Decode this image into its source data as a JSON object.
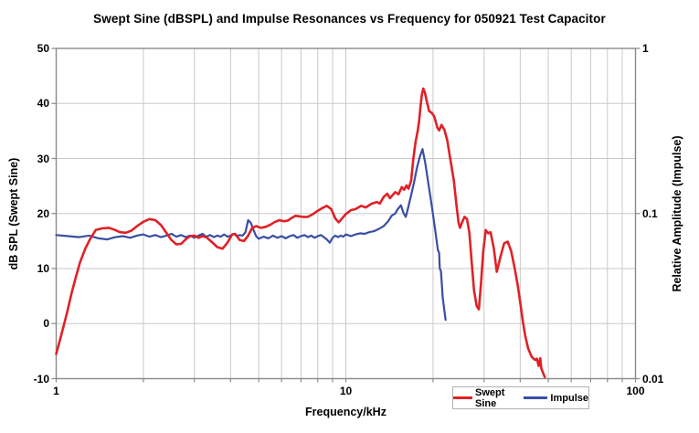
{
  "title": "Swept Sine (dBSPL) and Impulse Resonances vs Frequency for 050921 Test Capacitor",
  "axes": {
    "x": {
      "label": "Frequency/kHz",
      "tick_labels": [
        "1",
        "10",
        "100"
      ]
    },
    "y_left": {
      "label": "dB SPL (Swept Sine)",
      "tick_labels": [
        "50",
        "40",
        "30",
        "20",
        "10",
        "0",
        "-10"
      ]
    },
    "y_right": {
      "label": "Relative Amplitude (Impulse)",
      "tick_labels": [
        "1",
        "0.1",
        "0.01"
      ]
    }
  },
  "legend": {
    "items": [
      {
        "label": "Swept Sine",
        "color": "#e02127"
      },
      {
        "label": "Impulse",
        "color": "#3a4ea3"
      }
    ]
  },
  "colors": {
    "background": "#ffffff",
    "grid": "#c8c8c8",
    "frame": "#8a8a8a",
    "text": "#000000",
    "legend_border": "#b3b3b3",
    "swept_sine": "#e02127",
    "impulse": "#3a4ea3"
  },
  "chart_data": {
    "type": "line",
    "title": "Swept Sine (dBSPL) and Impulse Resonances vs Frequency for 050921 Test Capacitor",
    "xlabel": "Frequency/kHz",
    "ylabel_left": "dB SPL (Swept Sine)",
    "ylabel_right": "Relative Amplitude (Impulse)",
    "x_scale": "log",
    "xlim": [
      1,
      100
    ],
    "ylim_left": [
      -10,
      50
    ],
    "ylim_right": [
      0.01,
      1
    ],
    "y_right_scale": "log",
    "grid": true,
    "legend_position": "bottom-right",
    "x_ticks": [
      1,
      2,
      3,
      4,
      5,
      6,
      7,
      8,
      9,
      10,
      20,
      30,
      40,
      50,
      60,
      70,
      80,
      90,
      100
    ],
    "x_gridlines": [
      2,
      3,
      4,
      5,
      6,
      7,
      8,
      9,
      10,
      20,
      30,
      40,
      50,
      60,
      70,
      80,
      90
    ],
    "y_left_ticks": [
      50,
      40,
      30,
      20,
      10,
      0,
      -10
    ],
    "y_gridlines": [
      40,
      30,
      20,
      10,
      0
    ],
    "y_right_ticks": [
      1,
      0.1,
      0.01
    ],
    "series": [
      {
        "name": "Swept Sine",
        "color": "#e02127",
        "y_axis": "left",
        "units": "dB SPL",
        "width": 2.6,
        "points": [
          [
            1.0,
            -5.5
          ],
          [
            1.03,
            -3.0
          ],
          [
            1.06,
            -0.5
          ],
          [
            1.09,
            2.0
          ],
          [
            1.13,
            5.5
          ],
          [
            1.17,
            8.5
          ],
          [
            1.21,
            11.2
          ],
          [
            1.26,
            13.6
          ],
          [
            1.31,
            15.4
          ],
          [
            1.37,
            17.0
          ],
          [
            1.44,
            17.3
          ],
          [
            1.52,
            17.4
          ],
          [
            1.58,
            17.1
          ],
          [
            1.66,
            16.6
          ],
          [
            1.74,
            16.5
          ],
          [
            1.82,
            16.9
          ],
          [
            1.9,
            17.7
          ],
          [
            2.0,
            18.5
          ],
          [
            2.1,
            19.0
          ],
          [
            2.2,
            18.8
          ],
          [
            2.3,
            17.9
          ],
          [
            2.4,
            16.5
          ],
          [
            2.5,
            15.2
          ],
          [
            2.6,
            14.4
          ],
          [
            2.7,
            14.5
          ],
          [
            2.8,
            15.3
          ],
          [
            2.9,
            15.9
          ],
          [
            3.0,
            16.0
          ],
          [
            3.1,
            15.6
          ],
          [
            3.2,
            15.9
          ],
          [
            3.3,
            15.7
          ],
          [
            3.45,
            14.8
          ],
          [
            3.6,
            13.9
          ],
          [
            3.75,
            13.6
          ],
          [
            3.9,
            14.7
          ],
          [
            4.05,
            16.2
          ],
          [
            4.15,
            16.3
          ],
          [
            4.3,
            15.2
          ],
          [
            4.45,
            15.0
          ],
          [
            4.6,
            16.0
          ],
          [
            4.75,
            17.4
          ],
          [
            4.9,
            17.7
          ],
          [
            5.1,
            17.4
          ],
          [
            5.3,
            17.6
          ],
          [
            5.5,
            18.0
          ],
          [
            5.7,
            18.5
          ],
          [
            5.9,
            18.8
          ],
          [
            6.1,
            18.6
          ],
          [
            6.3,
            18.7
          ],
          [
            6.5,
            19.2
          ],
          [
            6.7,
            19.6
          ],
          [
            6.9,
            19.5
          ],
          [
            7.1,
            19.4
          ],
          [
            7.4,
            19.4
          ],
          [
            7.7,
            19.9
          ],
          [
            8.0,
            20.5
          ],
          [
            8.3,
            21.0
          ],
          [
            8.6,
            21.4
          ],
          [
            8.9,
            20.8
          ],
          [
            9.2,
            19.1
          ],
          [
            9.45,
            18.4
          ],
          [
            9.7,
            19.1
          ],
          [
            10.0,
            19.9
          ],
          [
            10.4,
            20.6
          ],
          [
            10.8,
            20.8
          ],
          [
            11.3,
            21.4
          ],
          [
            11.7,
            21.1
          ],
          [
            12.3,
            21.8
          ],
          [
            12.8,
            22.1
          ],
          [
            13.1,
            21.8
          ],
          [
            13.5,
            23.0
          ],
          [
            13.9,
            23.6
          ],
          [
            14.2,
            22.8
          ],
          [
            14.8,
            23.9
          ],
          [
            15.2,
            23.5
          ],
          [
            15.6,
            24.8
          ],
          [
            15.9,
            24.3
          ],
          [
            16.2,
            25.1
          ],
          [
            16.45,
            24.5
          ],
          [
            16.8,
            25.9
          ],
          [
            17.1,
            30.0
          ],
          [
            17.4,
            33.0
          ],
          [
            17.7,
            35.0
          ],
          [
            17.9,
            36.8
          ],
          [
            18.1,
            39.4
          ],
          [
            18.3,
            41.6
          ],
          [
            18.5,
            42.7
          ],
          [
            18.75,
            42.0
          ],
          [
            19.0,
            40.5
          ],
          [
            19.4,
            38.6
          ],
          [
            19.8,
            38.3
          ],
          [
            20.2,
            37.6
          ],
          [
            20.7,
            35.6
          ],
          [
            21.0,
            35.1
          ],
          [
            21.4,
            36.1
          ],
          [
            21.9,
            35.2
          ],
          [
            22.4,
            33.3
          ],
          [
            23.0,
            29.5
          ],
          [
            23.6,
            26.0
          ],
          [
            24.1,
            21.5
          ],
          [
            24.5,
            18.3
          ],
          [
            24.8,
            17.4
          ],
          [
            25.2,
            18.4
          ],
          [
            25.7,
            19.4
          ],
          [
            26.2,
            19.0
          ],
          [
            26.7,
            16.5
          ],
          [
            27.2,
            11.0
          ],
          [
            27.7,
            6.0
          ],
          [
            28.3,
            3.2
          ],
          [
            28.8,
            2.6
          ],
          [
            29.3,
            7.5
          ],
          [
            29.8,
            13.0
          ],
          [
            30.4,
            17.0
          ],
          [
            31.0,
            16.4
          ],
          [
            31.6,
            16.6
          ],
          [
            32.4,
            13.8
          ],
          [
            33.2,
            9.4
          ],
          [
            34.2,
            12.2
          ],
          [
            35.2,
            14.6
          ],
          [
            36.2,
            14.9
          ],
          [
            37.2,
            13.2
          ],
          [
            38.2,
            10.3
          ],
          [
            39.2,
            7.0
          ],
          [
            40.0,
            3.8
          ],
          [
            40.8,
            0.5
          ],
          [
            41.6,
            -2.2
          ],
          [
            42.6,
            -4.5
          ],
          [
            43.8,
            -6.0
          ],
          [
            45.0,
            -6.6
          ],
          [
            45.7,
            -6.4
          ],
          [
            46.3,
            -7.7
          ],
          [
            46.9,
            -6.3
          ],
          [
            47.3,
            -8.1
          ],
          [
            47.9,
            -8.9
          ],
          [
            48.6,
            -9.7
          ]
        ]
      },
      {
        "name": "Impulse",
        "color": "#3a4ea3",
        "y_axis": "right",
        "units": "relative amplitude",
        "width": 2.2,
        "points": [
          [
            1.0,
            0.0741
          ],
          [
            1.1,
            0.073
          ],
          [
            1.2,
            0.0719
          ],
          [
            1.3,
            0.0735
          ],
          [
            1.4,
            0.0708
          ],
          [
            1.5,
            0.0697
          ],
          [
            1.6,
            0.0719
          ],
          [
            1.7,
            0.073
          ],
          [
            1.8,
            0.0713
          ],
          [
            1.9,
            0.0735
          ],
          [
            2.0,
            0.0747
          ],
          [
            2.1,
            0.0724
          ],
          [
            2.2,
            0.0741
          ],
          [
            2.3,
            0.0719
          ],
          [
            2.4,
            0.0735
          ],
          [
            2.5,
            0.0753
          ],
          [
            2.6,
            0.0724
          ],
          [
            2.7,
            0.0741
          ],
          [
            2.8,
            0.0719
          ],
          [
            2.9,
            0.0735
          ],
          [
            3.0,
            0.0713
          ],
          [
            3.1,
            0.0735
          ],
          [
            3.2,
            0.0753
          ],
          [
            3.3,
            0.0724
          ],
          [
            3.4,
            0.0741
          ],
          [
            3.5,
            0.0719
          ],
          [
            3.6,
            0.0735
          ],
          [
            3.7,
            0.0724
          ],
          [
            3.8,
            0.0747
          ],
          [
            3.9,
            0.0724
          ],
          [
            4.0,
            0.0735
          ],
          [
            4.1,
            0.0753
          ],
          [
            4.2,
            0.073
          ],
          [
            4.3,
            0.0741
          ],
          [
            4.4,
            0.0735
          ],
          [
            4.5,
            0.077
          ],
          [
            4.6,
            0.0912
          ],
          [
            4.7,
            0.0877
          ],
          [
            4.8,
            0.0794
          ],
          [
            4.9,
            0.073
          ],
          [
            5.0,
            0.0703
          ],
          [
            5.2,
            0.0724
          ],
          [
            5.4,
            0.0708
          ],
          [
            5.6,
            0.0735
          ],
          [
            5.8,
            0.0713
          ],
          [
            6.0,
            0.073
          ],
          [
            6.2,
            0.0708
          ],
          [
            6.4,
            0.073
          ],
          [
            6.6,
            0.0741
          ],
          [
            6.8,
            0.0713
          ],
          [
            7.0,
            0.073
          ],
          [
            7.2,
            0.0741
          ],
          [
            7.4,
            0.0719
          ],
          [
            7.6,
            0.0735
          ],
          [
            7.8,
            0.0713
          ],
          [
            8.0,
            0.073
          ],
          [
            8.2,
            0.0741
          ],
          [
            8.4,
            0.0719
          ],
          [
            8.6,
            0.0697
          ],
          [
            8.8,
            0.0666
          ],
          [
            9.0,
            0.0713
          ],
          [
            9.2,
            0.0735
          ],
          [
            9.4,
            0.0719
          ],
          [
            9.6,
            0.0735
          ],
          [
            9.8,
            0.0724
          ],
          [
            10.0,
            0.0747
          ],
          [
            10.4,
            0.073
          ],
          [
            10.8,
            0.0747
          ],
          [
            11.2,
            0.0759
          ],
          [
            11.6,
            0.0753
          ],
          [
            12.0,
            0.077
          ],
          [
            12.5,
            0.0782
          ],
          [
            13.0,
            0.0807
          ],
          [
            13.5,
            0.0838
          ],
          [
            14.0,
            0.0898
          ],
          [
            14.4,
            0.097
          ],
          [
            14.8,
            0.1
          ],
          [
            15.1,
            0.1063
          ],
          [
            15.5,
            0.1122
          ],
          [
            15.8,
            0.101
          ],
          [
            16.1,
            0.0955
          ],
          [
            16.4,
            0.108
          ],
          [
            16.8,
            0.1288
          ],
          [
            17.2,
            0.1549
          ],
          [
            17.6,
            0.1891
          ],
          [
            18.0,
            0.2205
          ],
          [
            18.4,
            0.2455
          ],
          [
            18.8,
            0.2026
          ],
          [
            19.2,
            0.1585
          ],
          [
            19.6,
            0.1259
          ],
          [
            20.0,
            0.0985
          ],
          [
            20.4,
            0.0764
          ],
          [
            20.8,
            0.0598
          ],
          [
            21.0,
            0.058
          ],
          [
            21.1,
            0.0466
          ],
          [
            21.3,
            0.0447
          ],
          [
            21.6,
            0.0311
          ],
          [
            22.0,
            0.0242
          ],
          [
            22.1,
            0.0227
          ]
        ]
      }
    ]
  }
}
